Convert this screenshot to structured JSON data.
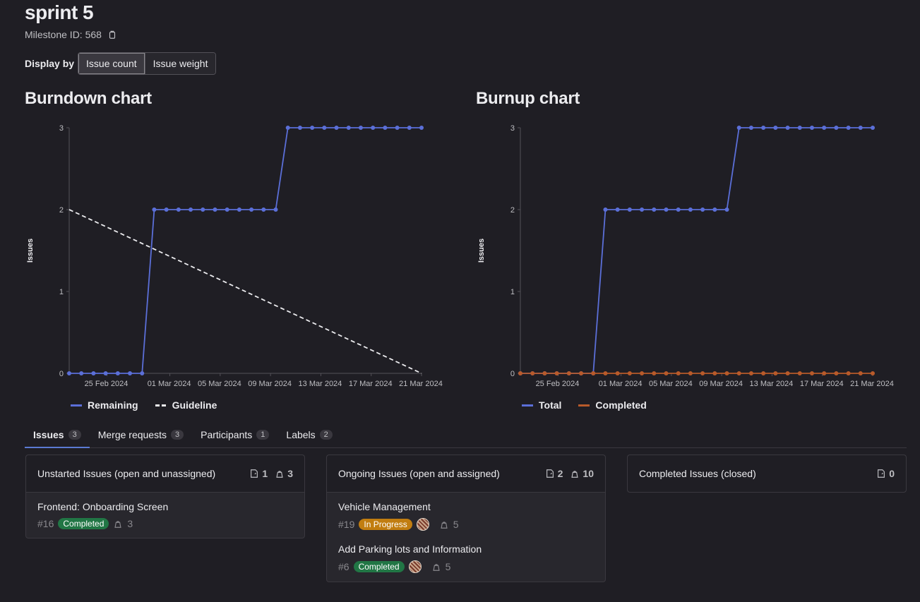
{
  "header": {
    "title": "sprint 5",
    "milestone_id": "Milestone ID: 568"
  },
  "display_by": {
    "label": "Display by",
    "options": [
      "Issue count",
      "Issue weight"
    ],
    "selected": "Issue count"
  },
  "colors": {
    "accent": "#5b6fd8",
    "completed": "#b85a2a",
    "guideline": "#ececef",
    "badge_completed": "#217645",
    "badge_progress": "#c17d10"
  },
  "burndown": {
    "title": "Burndown chart",
    "legend": [
      "Remaining",
      "Guideline"
    ]
  },
  "burnup": {
    "title": "Burnup chart",
    "legend": [
      "Total",
      "Completed"
    ]
  },
  "chart_data": [
    {
      "type": "line",
      "title": "Burndown chart",
      "ylabel": "Issues",
      "xlabel": "",
      "ylim": [
        0,
        3
      ],
      "yticks": [
        0,
        1,
        2,
        3
      ],
      "xtick_labels": [
        "25 Feb 2024",
        "01 Mar 2024",
        "05 Mar 2024",
        "09 Mar 2024",
        "13 Mar 2024",
        "17 Mar 2024",
        "21 Mar 2024"
      ],
      "xtick_index": [
        3,
        8,
        12,
        16,
        20,
        24,
        28
      ],
      "series": [
        {
          "name": "Remaining",
          "color": "#5b6fd8",
          "values": [
            0,
            0,
            0,
            0,
            0,
            0,
            0,
            2,
            2,
            2,
            2,
            2,
            2,
            2,
            2,
            2,
            2,
            2,
            3,
            3,
            3,
            3,
            3,
            3,
            3,
            3,
            3,
            3,
            3,
            3
          ]
        },
        {
          "name": "Guideline",
          "color": "#ececef",
          "dashed": true,
          "points": [
            [
              0,
              2
            ],
            [
              28,
              0
            ]
          ]
        }
      ]
    },
    {
      "type": "line",
      "title": "Burnup chart",
      "ylabel": "Issues",
      "xlabel": "",
      "ylim": [
        0,
        3
      ],
      "yticks": [
        0,
        1,
        2,
        3
      ],
      "xtick_labels": [
        "25 Feb 2024",
        "01 Mar 2024",
        "05 Mar 2024",
        "09 Mar 2024",
        "13 Mar 2024",
        "17 Mar 2024",
        "21 Mar 2024"
      ],
      "xtick_index": [
        3,
        8,
        12,
        16,
        20,
        24,
        28
      ],
      "series": [
        {
          "name": "Total",
          "color": "#5b6fd8",
          "values": [
            0,
            0,
            0,
            0,
            0,
            0,
            0,
            2,
            2,
            2,
            2,
            2,
            2,
            2,
            2,
            2,
            2,
            2,
            3,
            3,
            3,
            3,
            3,
            3,
            3,
            3,
            3,
            3,
            3,
            3
          ]
        },
        {
          "name": "Completed",
          "color": "#b85a2a",
          "values": [
            0,
            0,
            0,
            0,
            0,
            0,
            0,
            0,
            0,
            0,
            0,
            0,
            0,
            0,
            0,
            0,
            0,
            0,
            0,
            0,
            0,
            0,
            0,
            0,
            0,
            0,
            0,
            0,
            0,
            0
          ]
        }
      ]
    }
  ],
  "tabs": [
    {
      "label": "Issues",
      "count": "3"
    },
    {
      "label": "Merge requests",
      "count": "3"
    },
    {
      "label": "Participants",
      "count": "1"
    },
    {
      "label": "Labels",
      "count": "2"
    }
  ],
  "columns": {
    "unstarted": {
      "title": "Unstarted Issues (open and unassigned)",
      "issues": "1",
      "weight": "3"
    },
    "ongoing": {
      "title": "Ongoing Issues (open and assigned)",
      "issues": "2",
      "weight": "10"
    },
    "completed": {
      "title": "Completed Issues (closed)",
      "issues": "0"
    }
  },
  "issues": {
    "onboarding": {
      "title": "Frontend: Onboarding Screen",
      "ref": "#16",
      "status": "Completed",
      "weight": "3"
    },
    "vehicle": {
      "title": "Vehicle Management",
      "ref": "#19",
      "status": "In Progress",
      "weight": "5"
    },
    "parking": {
      "title": "Add Parking lots and Information",
      "ref": "#6",
      "status": "Completed",
      "weight": "5"
    }
  }
}
